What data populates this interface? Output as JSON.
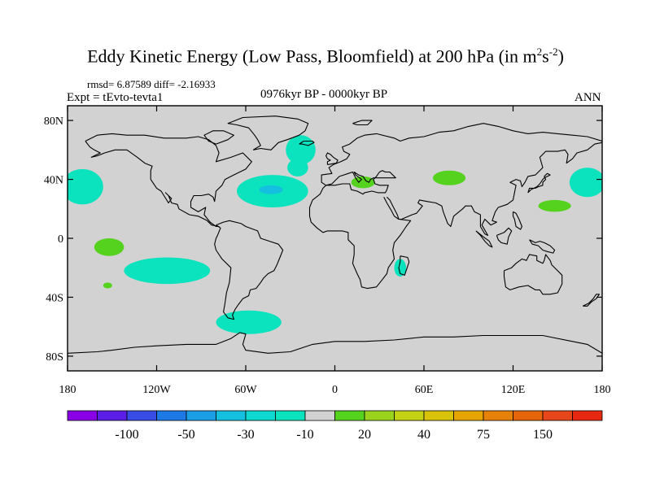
{
  "title": {
    "main": "Eddy Kinetic Energy (Low Pass, Bloomfield) at 200 hPa (in m",
    "sup1": "2",
    "mid": "s",
    "sup2": "-2",
    "end": ")"
  },
  "stats": "rmsd= 6.87589 diff= -2.16933",
  "experiment": "Expt = tEvto-tevta1",
  "period": "0976kyr BP - 0000kyr BP",
  "season": "ANN",
  "axes": {
    "lat_ticks": [
      {
        "value": 80,
        "label": "80N"
      },
      {
        "value": 40,
        "label": "40N"
      },
      {
        "value": 0,
        "label": "0"
      },
      {
        "value": -40,
        "label": "40S"
      },
      {
        "value": -80,
        "label": "80S"
      }
    ],
    "lon_ticks": [
      {
        "value": -180,
        "label": "180"
      },
      {
        "value": -120,
        "label": "120W"
      },
      {
        "value": -60,
        "label": "60W"
      },
      {
        "value": 0,
        "label": "0"
      },
      {
        "value": 60,
        "label": "60E"
      },
      {
        "value": 120,
        "label": "120E"
      },
      {
        "value": 180,
        "label": "180"
      }
    ],
    "lon_range": [
      -180,
      180
    ],
    "lat_range": [
      -90,
      90
    ]
  },
  "colorbar": {
    "colors": [
      "#8a00e6",
      "#5a1ee6",
      "#3a4ce6",
      "#1e78e6",
      "#1a9ee6",
      "#14bfe0",
      "#0dd9d0",
      "#0ae3bd",
      "#d2d2d2",
      "#55d21e",
      "#9bd21e",
      "#c3d214",
      "#d9c30a",
      "#e6a500",
      "#e6820a",
      "#e6640a",
      "#e6461a",
      "#e62810"
    ],
    "labels": [
      {
        "after_box": 2,
        "text": "-100"
      },
      {
        "after_box": 4,
        "text": "-50"
      },
      {
        "after_box": 6,
        "text": "-30"
      },
      {
        "after_box": 8,
        "text": "-10"
      },
      {
        "after_box": 10,
        "text": "20"
      },
      {
        "after_box": 12,
        "text": "40"
      },
      {
        "after_box": 14,
        "text": "75"
      },
      {
        "after_box": 16,
        "text": "150"
      }
    ]
  },
  "field": {
    "background_color": "#d2d2d2",
    "regions": [
      {
        "name": "north-pacific-east",
        "color": "#0ae3bd",
        "lon": -170,
        "lat": 35,
        "rlon": 14,
        "rlat": 12
      },
      {
        "name": "north-pacific-west",
        "color": "#0ae3bd",
        "lon": 170,
        "lat": 38,
        "rlon": 12,
        "rlat": 10
      },
      {
        "name": "north-atlantic-south",
        "color": "#0ae3bd",
        "lon": -42,
        "lat": 32,
        "rlon": 24,
        "rlat": 11
      },
      {
        "name": "north-atlantic-core",
        "color": "#14bfe0",
        "lon": -43,
        "lat": 33,
        "rlon": 8,
        "rlat": 3
      },
      {
        "name": "greenland-sea",
        "color": "#0ae3bd",
        "lon": -23,
        "lat": 60,
        "rlon": 10,
        "rlat": 10
      },
      {
        "name": "east-atlantic",
        "color": "#0ae3bd",
        "lon": -25,
        "lat": 48,
        "rlon": 7,
        "rlat": 6
      },
      {
        "name": "south-pacific",
        "color": "#0ae3bd",
        "lon": -113,
        "lat": -22,
        "rlon": 29,
        "rlat": 9
      },
      {
        "name": "southern-ocean",
        "color": "#0ae3bd",
        "lon": -58,
        "lat": -57,
        "rlon": 22,
        "rlat": 8
      },
      {
        "name": "madagascar",
        "color": "#0ae3bd",
        "lon": 44,
        "lat": -20,
        "rlon": 4,
        "rlat": 6
      },
      {
        "name": "pacific-tropics",
        "color": "#55d21e",
        "lon": -152,
        "lat": -6,
        "rlon": 10,
        "rlat": 6
      },
      {
        "name": "south-pacific-small",
        "color": "#55d21e",
        "lon": -153,
        "lat": -32,
        "rlon": 3,
        "rlat": 2
      },
      {
        "name": "mediterranean",
        "color": "#55d21e",
        "lon": 19,
        "lat": 38,
        "rlon": 8,
        "rlat": 4
      },
      {
        "name": "central-asia",
        "color": "#55d21e",
        "lon": 77,
        "lat": 41,
        "rlon": 11,
        "rlat": 5
      },
      {
        "name": "west-pacific",
        "color": "#55d21e",
        "lon": 148,
        "lat": 22,
        "rlon": 11,
        "rlat": 4
      }
    ]
  }
}
